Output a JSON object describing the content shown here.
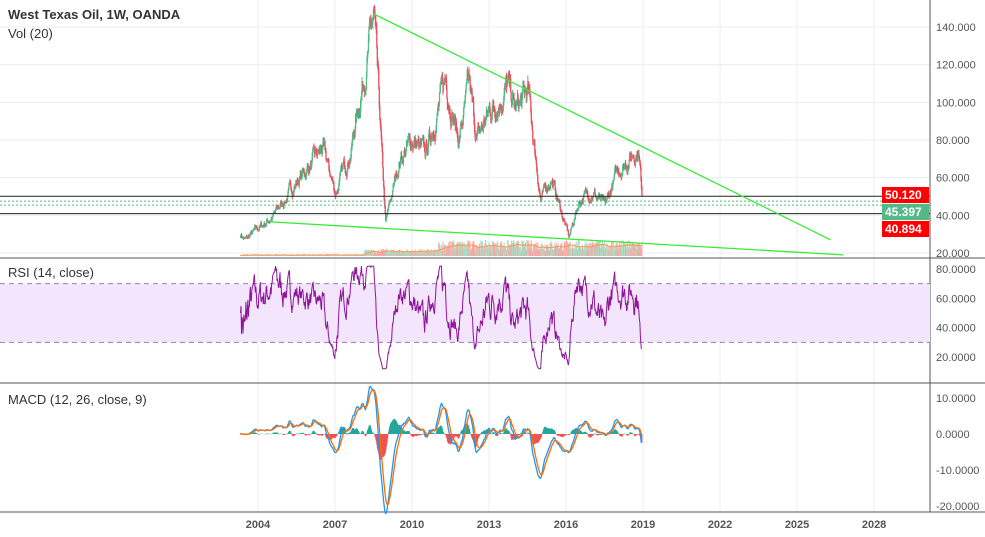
{
  "header": {
    "title": "West Texas Oil, 1W, OANDA",
    "volume": "Vol (20)",
    "rsi": "RSI (14, close)",
    "macd": "MACD (12, 26, close, 9)"
  },
  "badges": [
    {
      "value": "50.120",
      "color": "#ff0000"
    },
    {
      "value": "45.397",
      "color": "#53b987"
    },
    {
      "value": "40.894",
      "color": "#ff0000"
    }
  ],
  "colors": {
    "up": "#53b987",
    "down": "#eb4d5c",
    "trendline": "#33ee33",
    "rsi": "#8e1599",
    "rsi_band": "#f3e5fb",
    "macd": "#2196f3",
    "signal": "#ff6d00"
  },
  "chart_data": [
    {
      "type": "candlestick",
      "title": "West Texas Oil, 1W, OANDA",
      "ylim": [
        20,
        150
      ],
      "yticks": [
        "20.000",
        "40.000",
        "60.000",
        "80.000",
        "100.000",
        "120.000",
        "140.000"
      ],
      "xticks": [
        "2004",
        "2007",
        "2010",
        "2013",
        "2016",
        "2019",
        "2022",
        "2025",
        "2028"
      ],
      "keypoints": [
        [
          2003.3,
          30
        ],
        [
          2003.5,
          27
        ],
        [
          2004,
          33
        ],
        [
          2004.6,
          40
        ],
        [
          2005.5,
          58
        ],
        [
          2006.5,
          75
        ],
        [
          2007,
          52
        ],
        [
          2007.6,
          75
        ],
        [
          2008.5,
          145
        ],
        [
          2008.95,
          35
        ],
        [
          2009.5,
          70
        ],
        [
          2010,
          80
        ],
        [
          2010.5,
          72
        ],
        [
          2011.3,
          112
        ],
        [
          2011.8,
          80
        ],
        [
          2012.2,
          108
        ],
        [
          2012.5,
          80
        ],
        [
          2013,
          95
        ],
        [
          2013.7,
          108
        ],
        [
          2014,
          95
        ],
        [
          2014.5,
          105
        ],
        [
          2015,
          48
        ],
        [
          2015.4,
          60
        ],
        [
          2016.1,
          28
        ],
        [
          2016.5,
          48
        ],
        [
          2017,
          53
        ],
        [
          2017.5,
          44
        ],
        [
          2018,
          64
        ],
        [
          2018.8,
          76
        ],
        [
          2018.95,
          50
        ]
      ],
      "horizontal_levels": [
        50.12,
        40.894
      ],
      "current_price": 45.397,
      "trendlines": [
        [
          [
            2008.5,
            147
          ],
          [
            2026.3,
            27
          ]
        ],
        [
          [
            2004.5,
            36.5
          ],
          [
            2026.8,
            19
          ]
        ]
      ]
    },
    {
      "type": "line",
      "name": "RSI (14, close)",
      "ylim": [
        10,
        85
      ],
      "yticks": [
        "20.0000",
        "40.0000",
        "60.0000",
        "80.0000"
      ],
      "bands": [
        30,
        70
      ]
    },
    {
      "type": "line",
      "name": "MACD (12, 26, close, 9)",
      "ylim": [
        -21,
        13
      ],
      "yticks": [
        "-20.0000",
        "-10.0000",
        "0.0000",
        "10.0000"
      ]
    }
  ]
}
